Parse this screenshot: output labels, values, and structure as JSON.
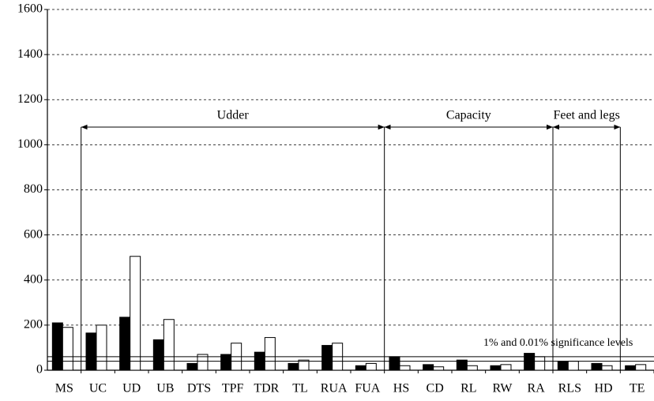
{
  "chart_data": {
    "type": "bar",
    "categories": [
      "MS",
      "UC",
      "UD",
      "UB",
      "DTS",
      "TPF",
      "TDR",
      "TL",
      "RUA",
      "FUA",
      "HS",
      "CD",
      "RL",
      "RW",
      "RA",
      "RLS",
      "HD",
      "TE"
    ],
    "series": [
      {
        "color": "#000000",
        "values": [
          210,
          165,
          235,
          135,
          30,
          70,
          80,
          30,
          110,
          20,
          60,
          25,
          45,
          20,
          75,
          40,
          30,
          20
        ]
      },
      {
        "color": "#ffffff",
        "values": [
          190,
          200,
          505,
          225,
          70,
          120,
          145,
          45,
          120,
          30,
          20,
          15,
          20,
          25,
          60,
          40,
          20,
          25
        ]
      }
    ],
    "ylim": [
      0,
      1600
    ],
    "yticks": [
      0,
      200,
      400,
      600,
      800,
      1000,
      1200,
      1400,
      1600
    ],
    "grid": true,
    "groups": [
      "Udder",
      "Capacity",
      "Feet and legs"
    ],
    "significance_lines": [
      60,
      40
    ],
    "significance_label": "1% and 0.01% significance levels"
  }
}
